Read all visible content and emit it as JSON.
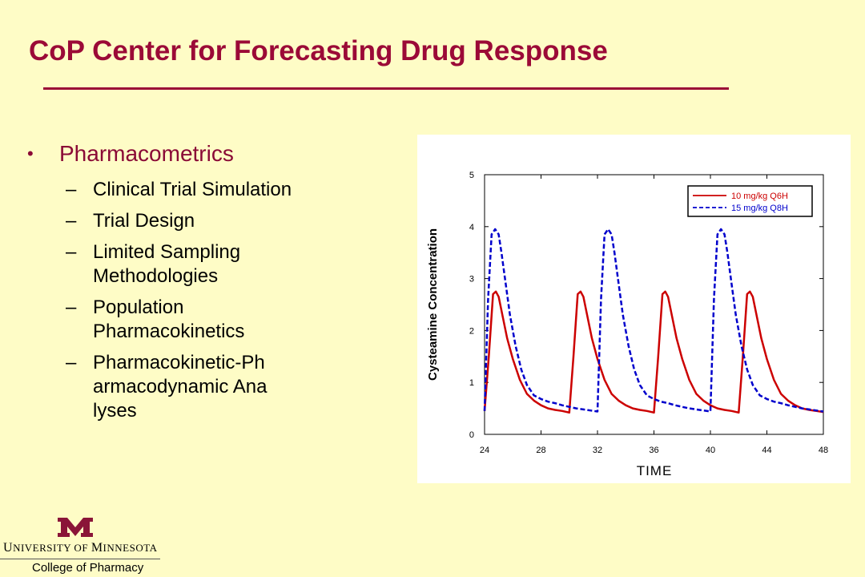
{
  "slide": {
    "title": "CoP Center for Forecasting Drug Response",
    "bullet": "Pharmacometrics",
    "bullet_marker": "•",
    "sub_marker": "–",
    "subitems": [
      "Clinical Trial Simulation",
      "Trial Design",
      "Limited Sampling Methodologies",
      "Population Pharmacokinetics",
      "Pharmacokinetic-Pharmacodynamic Analyses"
    ],
    "colors": {
      "background": "#fefcc6",
      "title": "#9b0a37",
      "rule": "#9b0a37"
    }
  },
  "logo": {
    "univ_parts": [
      "U",
      "NIVERSITY OF ",
      "M",
      "INNESOTA"
    ],
    "college": "College of Pharmacy",
    "mark_color": "#8a1538"
  },
  "chart_data": {
    "type": "line",
    "xlabel": "TIME",
    "ylabel": "Cysteamine Concentration",
    "xlim": [
      24,
      48
    ],
    "ylim": [
      0,
      5
    ],
    "xticks": [
      24,
      28,
      32,
      36,
      40,
      44,
      48
    ],
    "yticks": [
      0,
      1,
      2,
      3,
      4,
      5
    ],
    "legend_position": "top-right",
    "series": [
      {
        "name": "10 mg/kg Q6H",
        "color": "#cc0000",
        "style": "solid",
        "x": [
          24.0,
          24.3,
          24.6,
          24.8,
          25.0,
          25.3,
          25.6,
          26.0,
          26.5,
          27.0,
          27.5,
          28.0,
          28.5,
          29.0,
          29.5,
          30.0,
          30.3,
          30.6,
          30.8,
          31.0,
          31.3,
          31.6,
          32.0,
          32.5,
          33.0,
          33.5,
          34.0,
          34.5,
          35.0,
          35.5,
          36.0,
          36.3,
          36.6,
          36.8,
          37.0,
          37.3,
          37.6,
          38.0,
          38.5,
          39.0,
          39.5,
          40.0,
          40.5,
          41.0,
          41.5,
          42.0,
          42.3,
          42.6,
          42.8,
          43.0,
          43.3,
          43.6,
          44.0,
          44.5,
          45.0,
          45.5,
          46.0,
          46.5,
          47.0,
          47.5,
          48.0
        ],
        "y": [
          0.45,
          1.5,
          2.7,
          2.75,
          2.65,
          2.25,
          1.85,
          1.45,
          1.05,
          0.78,
          0.65,
          0.56,
          0.5,
          0.47,
          0.45,
          0.42,
          1.5,
          2.7,
          2.75,
          2.65,
          2.25,
          1.85,
          1.45,
          1.05,
          0.78,
          0.65,
          0.56,
          0.5,
          0.47,
          0.45,
          0.42,
          1.5,
          2.7,
          2.75,
          2.65,
          2.25,
          1.85,
          1.45,
          1.05,
          0.78,
          0.65,
          0.56,
          0.5,
          0.47,
          0.45,
          0.42,
          1.5,
          2.7,
          2.75,
          2.65,
          2.25,
          1.85,
          1.45,
          1.05,
          0.78,
          0.65,
          0.56,
          0.5,
          0.47,
          0.45,
          0.43
        ]
      },
      {
        "name": "15 mg/kg Q8H",
        "color": "#0000cc",
        "style": "dashed",
        "x": [
          24.0,
          24.25,
          24.5,
          24.75,
          25.0,
          25.2,
          25.5,
          25.8,
          26.2,
          26.6,
          27.0,
          27.5,
          28.0,
          28.5,
          29.0,
          29.5,
          30.0,
          30.5,
          31.0,
          31.5,
          32.0,
          32.25,
          32.5,
          32.75,
          33.0,
          33.2,
          33.5,
          33.8,
          34.2,
          34.6,
          35.0,
          35.5,
          36.0,
          36.5,
          37.0,
          37.5,
          38.0,
          38.5,
          39.0,
          39.5,
          40.0,
          40.25,
          40.5,
          40.75,
          41.0,
          41.2,
          41.5,
          41.8,
          42.2,
          42.6,
          43.0,
          43.5,
          44.0,
          44.5,
          45.0,
          45.5,
          46.0,
          46.5,
          47.0,
          47.5,
          48.0
        ],
        "y": [
          0.45,
          2.6,
          3.85,
          3.95,
          3.85,
          3.5,
          2.9,
          2.3,
          1.7,
          1.25,
          0.95,
          0.75,
          0.68,
          0.63,
          0.6,
          0.56,
          0.53,
          0.5,
          0.48,
          0.46,
          0.44,
          2.6,
          3.85,
          3.95,
          3.85,
          3.5,
          2.9,
          2.3,
          1.7,
          1.25,
          0.95,
          0.75,
          0.68,
          0.63,
          0.6,
          0.56,
          0.53,
          0.5,
          0.48,
          0.46,
          0.44,
          2.6,
          3.85,
          3.95,
          3.85,
          3.5,
          2.9,
          2.3,
          1.7,
          1.25,
          0.95,
          0.75,
          0.68,
          0.63,
          0.6,
          0.56,
          0.53,
          0.5,
          0.48,
          0.46,
          0.44
        ]
      }
    ]
  }
}
